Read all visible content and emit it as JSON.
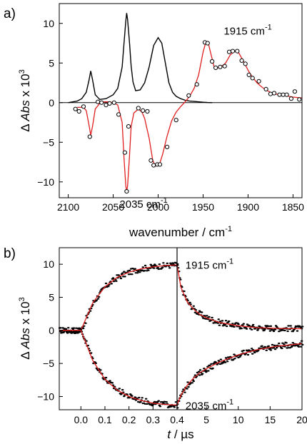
{
  "chart_data": [
    {
      "panel": "a)",
      "type": "line",
      "xlabel": {
        "text": "wavenumber / cm",
        "sup": "-1"
      },
      "ylabel": {
        "pre": "Δ ",
        "ital": "Abs",
        "post": " x 10",
        "sup": "3"
      },
      "xlim": [
        2110,
        1840
      ],
      "ylim": [
        -12,
        12.5
      ],
      "xticks": [
        2100,
        2050,
        2000,
        1950,
        1900,
        1850
      ],
      "yticks": [
        -10,
        -5,
        0,
        5,
        10
      ],
      "annotations": [
        {
          "text": "1915 cm",
          "sup": "-1",
          "x": 1915,
          "y": 7.5
        },
        {
          "text": "2035 cm",
          "sup": "-1",
          "x": 2035,
          "y": -11.3
        }
      ],
      "series": [
        {
          "style": "black-line",
          "x": [
            2100,
            2090,
            2085,
            2080,
            2077,
            2075,
            2073,
            2070,
            2065,
            2058,
            2050,
            2045,
            2040,
            2038,
            2036,
            2035,
            2034,
            2032,
            2030,
            2028,
            2025,
            2020,
            2015,
            2010,
            2005,
            2000,
            1996,
            1992,
            1988,
            1984,
            1980,
            1975,
            1970,
            1965,
            1960,
            1950,
            1945,
            1940
          ],
          "y": [
            0,
            0.2,
            0.5,
            1.3,
            2.8,
            4.0,
            2.9,
            1.0,
            0.4,
            0.5,
            1.0,
            1.8,
            4.5,
            7.5,
            10.3,
            11.3,
            10.5,
            7.8,
            4.6,
            2.6,
            1.5,
            1.6,
            2.5,
            4.5,
            7.2,
            8.2,
            7.5,
            5.0,
            2.5,
            1.3,
            0.8,
            0.5,
            0.3,
            0.2,
            0.15,
            0.05,
            0.02,
            0
          ]
        },
        {
          "style": "red-line",
          "x": [
            2090,
            2083,
            2080,
            2077,
            2075,
            2073,
            2070,
            2065,
            2060,
            2055,
            2050,
            2045,
            2040,
            2038,
            2036,
            2035,
            2034,
            2032,
            2030,
            2027,
            2022,
            2018,
            2015,
            2010,
            2006,
            2003,
            2000,
            1998,
            1995,
            1990,
            1985,
            1980,
            1975,
            1970,
            1965,
            1960,
            1955,
            1950,
            1947,
            1944,
            1941,
            1938,
            1935,
            1932,
            1928,
            1925,
            1920,
            1915,
            1910,
            1905,
            1900,
            1895,
            1890,
            1885,
            1880,
            1875,
            1870,
            1865,
            1860,
            1855,
            1850,
            1845,
            1840
          ],
          "y": [
            -0.6,
            -0.6,
            -1.0,
            -2.8,
            -4.1,
            -3.0,
            -0.8,
            -0.1,
            0.1,
            0.1,
            0.0,
            -0.3,
            -2.5,
            -7.0,
            -10.5,
            -11.2,
            -10.5,
            -7.0,
            -3.0,
            -1.3,
            -0.8,
            -1.2,
            -2.0,
            -4.5,
            -7.3,
            -8.0,
            -7.9,
            -7.6,
            -6.5,
            -4.2,
            -2.3,
            -1.2,
            -0.5,
            0.1,
            0.8,
            1.8,
            3.5,
            6.4,
            7.6,
            7.4,
            6.0,
            4.6,
            4.3,
            4.5,
            4.7,
            5.0,
            6.0,
            6.5,
            6.2,
            5.2,
            4.1,
            3.2,
            2.5,
            2.0,
            1.6,
            1.3,
            1.1,
            1.0,
            0.9,
            0.8,
            0.7,
            0.65,
            0.6
          ]
        },
        {
          "style": "open-circles",
          "x": [
            2092,
            2088,
            2083,
            2076,
            2067,
            2063,
            2058,
            2054,
            2049,
            2044,
            2037,
            2035,
            2033,
            2022,
            2017,
            2012,
            2008,
            2005,
            2001,
            1998,
            1990,
            1980,
            1966,
            1957,
            1948,
            1945,
            1940,
            1936,
            1931,
            1926,
            1921,
            1917,
            1912,
            1907,
            1903,
            1899,
            1895,
            1888,
            1880,
            1875,
            1871,
            1865,
            1861,
            1857,
            1852,
            1848,
            1843
          ],
          "y": [
            -0.8,
            -1.1,
            -0.5,
            -4.3,
            0.1,
            0.0,
            -0.3,
            -0.1,
            0.0,
            -1.5,
            -6.3,
            -11.2,
            -3.0,
            -0.7,
            -1.0,
            -1.1,
            -7.3,
            -7.9,
            -7.8,
            -7.8,
            -5.6,
            -2.2,
            0.9,
            2.3,
            7.6,
            7.5,
            5.2,
            4.4,
            4.5,
            4.6,
            6.4,
            6.5,
            6.5,
            5.3,
            4.9,
            3.5,
            3.1,
            2.7,
            1.7,
            1.1,
            1.2,
            1.0,
            1.0,
            1.0,
            0.5,
            1.4,
            0.4
          ]
        }
      ]
    },
    {
      "panel": "b)",
      "type": "scatter",
      "xlabel": {
        "ital": "t",
        "post": " / µs"
      },
      "ylabel": {
        "pre": "Δ ",
        "ital": "Abs",
        "post": " x 10",
        "sup": "3"
      },
      "ylim": [
        -12,
        12.5
      ],
      "yticks": [
        -10,
        -5,
        0,
        5,
        10
      ],
      "left_segment": {
        "xlim": [
          -0.09,
          0.4
        ],
        "xticks": [
          0.0,
          0.1,
          0.2,
          0.3,
          0.4
        ],
        "xtick_labels": [
          "0.0",
          "0.1",
          "0.2",
          "0.3",
          "0.4"
        ]
      },
      "right_segment": {
        "xlim": [
          0.4,
          20
        ],
        "xticks": [
          0.4,
          5,
          10,
          15,
          20
        ],
        "xtick_labels": [
          "0.4",
          "5",
          "10",
          "15",
          "20"
        ]
      },
      "annotations": [
        {
          "text": "1915 cm",
          "sup": "-1",
          "segment": "right",
          "x": 1.5,
          "y": 9.3
        },
        {
          "text": "2035 cm",
          "sup": "-1",
          "segment": "right",
          "x": 1.5,
          "y": -11.4
        }
      ],
      "series": [
        {
          "name": "1915 cm-1",
          "fit_left": {
            "x": [
              -0.09,
              -0.05,
              0.0,
              0.05,
              0.1,
              0.15,
              0.2,
              0.25,
              0.3,
              0.35,
              0.4
            ],
            "y": [
              0,
              0,
              0,
              4.2,
              6.6,
              8.0,
              8.8,
              9.3,
              9.6,
              9.8,
              9.9
            ]
          },
          "fit_right": {
            "x": [
              0.4,
              1,
              2,
              3,
              4,
              5,
              7,
              10,
              13,
              16,
              20
            ],
            "y": [
              9.9,
              6.5,
              4.3,
              3.2,
              2.4,
              1.9,
              1.2,
              0.7,
              0.4,
              0.3,
              0.25
            ]
          }
        },
        {
          "name": "2035 cm-1",
          "fit_left": {
            "x": [
              -0.09,
              -0.05,
              0.0,
              0.05,
              0.1,
              0.15,
              0.2,
              0.25,
              0.3,
              0.35,
              0.4
            ],
            "y": [
              0,
              0,
              0,
              -4.6,
              -7.4,
              -9.0,
              -10.0,
              -10.6,
              -11.0,
              -11.2,
              -11.3
            ]
          },
          "fit_right": {
            "x": [
              0.4,
              1,
              2,
              3,
              4,
              5,
              7,
              10,
              13,
              16,
              20
            ],
            "y": [
              -11.3,
              -9.8,
              -8.3,
              -7.2,
              -6.4,
              -5.8,
              -4.8,
              -3.7,
              -2.9,
              -2.4,
              -2.0
            ]
          }
        }
      ]
    }
  ]
}
